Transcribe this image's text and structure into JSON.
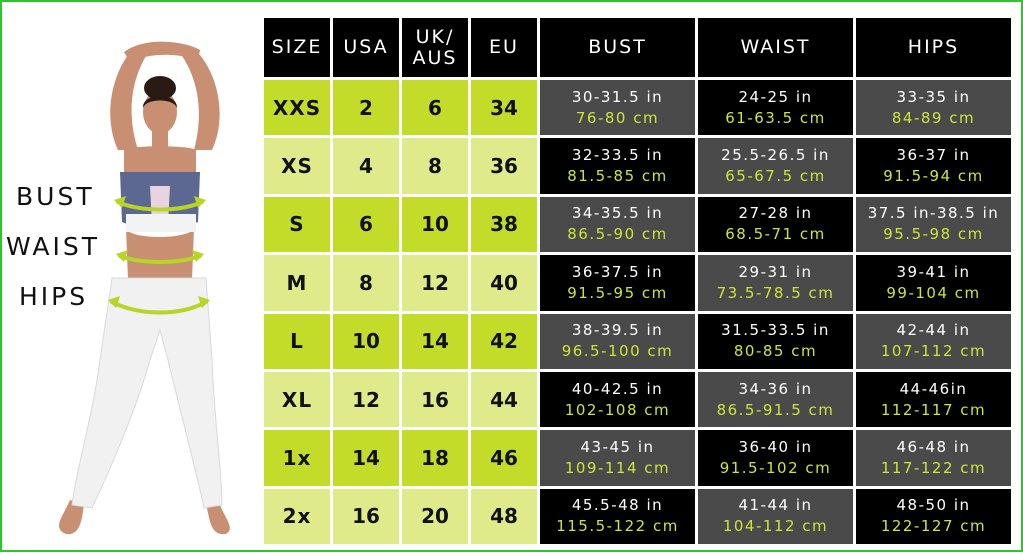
{
  "colors": {
    "lime_dark": "#c3dc2a",
    "lime_light": "#dfeb8a",
    "cm_text": "#cde43a",
    "grey_cell": "#4a4a4a",
    "black_cell": "#000000",
    "frame": "#2ec52e"
  },
  "figure": {
    "labels": {
      "bust": "BUST",
      "waist": "WAIST",
      "hips": "HIPS"
    }
  },
  "table": {
    "headers": [
      "SIZE",
      "USA",
      "UK/\nAUS",
      "EU",
      "BUST",
      "WAIST",
      "HIPS"
    ],
    "rows": [
      {
        "size": "XXS",
        "usa": "2",
        "uk_aus": "6",
        "eu": "34",
        "bust_in": "30-31.5 in",
        "bust_cm": "76-80 cm",
        "waist_in": "24-25 in",
        "waist_cm": "61-63.5 cm",
        "hips_in": "33-35 in",
        "hips_cm": "84-89 cm"
      },
      {
        "size": "XS",
        "usa": "4",
        "uk_aus": "8",
        "eu": "36",
        "bust_in": "32-33.5 in",
        "bust_cm": "81.5-85 cm",
        "waist_in": "25.5-26.5 in",
        "waist_cm": "65-67.5 cm",
        "hips_in": "36-37 in",
        "hips_cm": "91.5-94 cm"
      },
      {
        "size": "S",
        "usa": "6",
        "uk_aus": "10",
        "eu": "38",
        "bust_in": "34-35.5 in",
        "bust_cm": "86.5-90 cm",
        "waist_in": "27-28 in",
        "waist_cm": "68.5-71 cm",
        "hips_in": "37.5 in-38.5 in",
        "hips_cm": "95.5-98 cm"
      },
      {
        "size": "M",
        "usa": "8",
        "uk_aus": "12",
        "eu": "40",
        "bust_in": "36-37.5 in",
        "bust_cm": "91.5-95 cm",
        "waist_in": "29-31 in",
        "waist_cm": "73.5-78.5 cm",
        "hips_in": "39-41 in",
        "hips_cm": "99-104 cm"
      },
      {
        "size": "L",
        "usa": "10",
        "uk_aus": "14",
        "eu": "42",
        "bust_in": "38-39.5 in",
        "bust_cm": "96.5-100 cm",
        "waist_in": "31.5-33.5 in",
        "waist_cm": "80-85 cm",
        "hips_in": "42-44 in",
        "hips_cm": "107-112 cm"
      },
      {
        "size": "XL",
        "usa": "12",
        "uk_aus": "16",
        "eu": "44",
        "bust_in": "40-42.5 in",
        "bust_cm": "102-108 cm",
        "waist_in": "34-36 in",
        "waist_cm": "86.5-91.5 cm",
        "hips_in": "44-46in",
        "hips_cm": "112-117 cm"
      },
      {
        "size": "1x",
        "usa": "14",
        "uk_aus": "18",
        "eu": "46",
        "bust_in": "43-45 in",
        "bust_cm": "109-114 cm",
        "waist_in": "36-40 in",
        "waist_cm": "91.5-102 cm",
        "hips_in": "46-48 in",
        "hips_cm": "117-122 cm"
      },
      {
        "size": "2x",
        "usa": "16",
        "uk_aus": "20",
        "eu": "48",
        "bust_in": "45.5-48 in",
        "bust_cm": "115.5-122 cm",
        "waist_in": "41-44 in",
        "waist_cm": "104-112 cm",
        "hips_in": "48-50 in",
        "hips_cm": "122-127 cm"
      }
    ]
  }
}
